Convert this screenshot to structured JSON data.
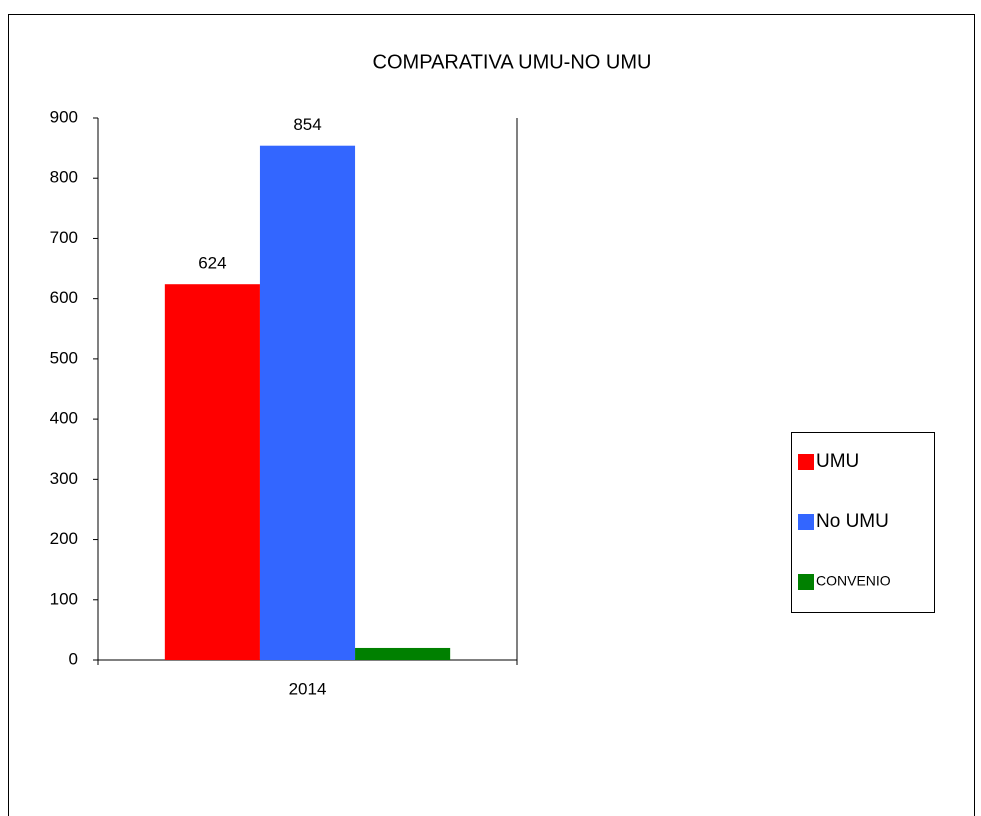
{
  "chart_data": {
    "type": "bar",
    "title": "COMPARATIVA UMU-NO UMU",
    "categories": [
      "2014"
    ],
    "series": [
      {
        "name": "UMU",
        "color": "#ff0000",
        "values": [
          624
        ],
        "value_labels": [
          "624"
        ]
      },
      {
        "name": "No UMU",
        "color": "#3366ff",
        "values": [
          854
        ],
        "value_labels": [
          "854"
        ]
      },
      {
        "name": "CONVENIO",
        "color": "#008000",
        "values": [
          20
        ]
      }
    ],
    "ylim": [
      0,
      900
    ],
    "yticks": [
      0,
      100,
      200,
      300,
      400,
      500,
      600,
      700,
      800,
      900
    ],
    "grid": false,
    "legend": "right"
  }
}
